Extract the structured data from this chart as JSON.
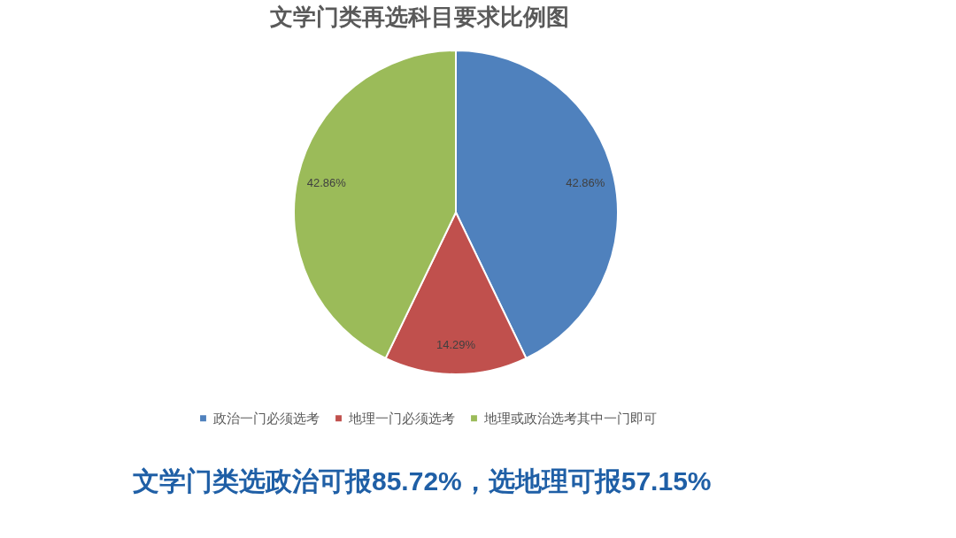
{
  "chart_data": {
    "type": "pie",
    "title": "文学门类再选科目要求比例图",
    "categories": [
      "政治一门必须选考",
      "地理一门必须选考",
      "地理或政治选考其中一门即可"
    ],
    "values": [
      42.86,
      14.29,
      42.86
    ],
    "colors": [
      "#4f81bd",
      "#c0504d",
      "#9bbb59"
    ],
    "value_labels": [
      "42.86%",
      "14.29%",
      "42.86%"
    ],
    "legend": "bottom",
    "annotations": [
      "文学门类选政治可报85.72%，选地理可报57.15%"
    ]
  }
}
